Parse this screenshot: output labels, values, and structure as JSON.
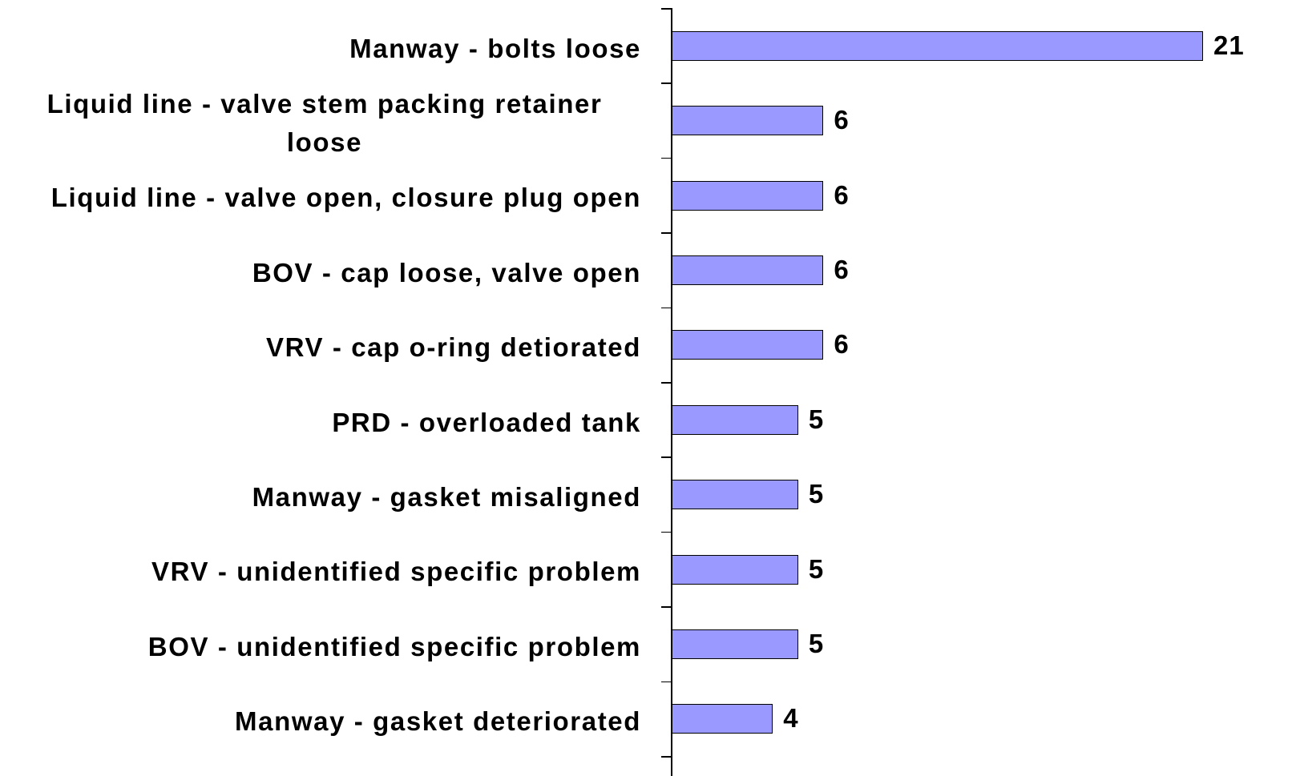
{
  "chart_data": {
    "type": "barh",
    "categories": [
      "Manway - bolts loose",
      "Liquid line - valve stem packing retainer loose",
      "Liquid line - valve open, closure plug open",
      "BOV - cap loose, valve open",
      "VRV - cap o-ring detiorated",
      "PRD - overloaded tank",
      "Manway - gasket misaligned",
      "VRV - unidentified specific problem",
      "BOV - unidentified specific problem",
      "Manway - gasket deteriorated"
    ],
    "values": [
      21,
      6,
      6,
      6,
      6,
      5,
      5,
      5,
      5,
      4
    ],
    "color": "#9999ff"
  }
}
